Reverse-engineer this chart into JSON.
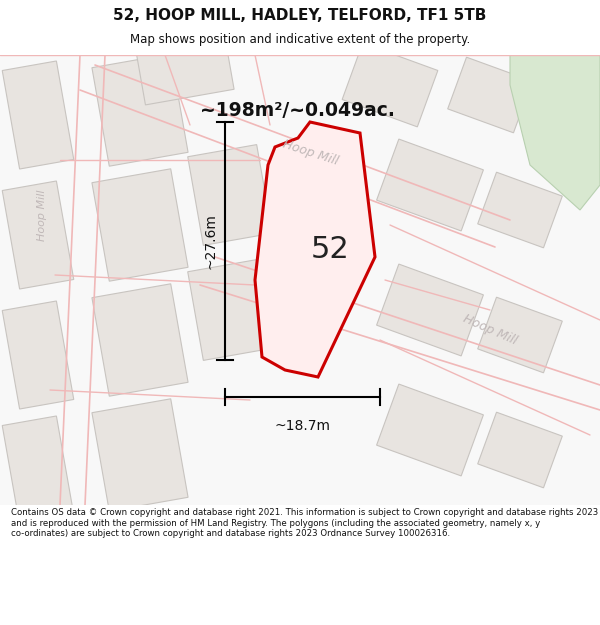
{
  "title": "52, HOOP MILL, HADLEY, TELFORD, TF1 5TB",
  "subtitle": "Map shows position and indicative extent of the property.",
  "footer": "Contains OS data © Crown copyright and database right 2021. This information is subject to Crown copyright and database rights 2023 and is reproduced with the permission of HM Land Registry. The polygons (including the associated geometry, namely x, y co-ordinates) are subject to Crown copyright and database rights 2023 Ordnance Survey 100026316.",
  "area_label": "~198m²/~0.049ac.",
  "number_label": "52",
  "dim_height": "~27.6m",
  "dim_width": "~18.7m",
  "map_bg": "#f8f8f8",
  "road_line_color": "#f0b8b8",
  "road_fill_color": "#f5e8e8",
  "building_fill": "#e8e4e0",
  "building_edge": "#c8c4c0",
  "green_fill": "#d8e8d0",
  "green_edge": "#b8d0b0",
  "plot_color": "#cc0000",
  "plot_fill": "#ff000010",
  "road_label_color": "#c0b8b8",
  "left_road_label": "Hoop Mill",
  "upper_road_label": "Hoop Mill",
  "lower_road_label": "Hoop Mill"
}
